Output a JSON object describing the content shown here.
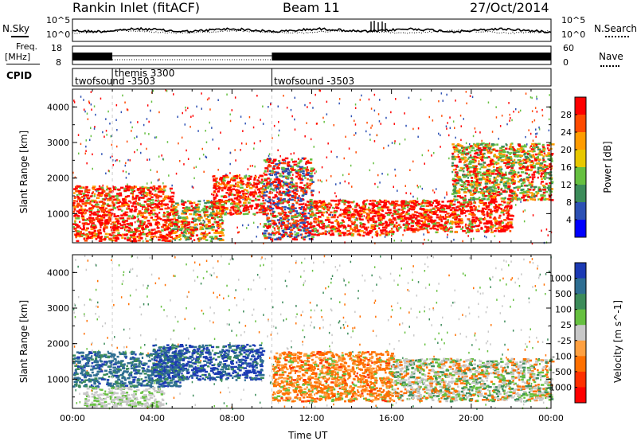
{
  "header": {
    "station": "Rankin Inlet (fitACF)",
    "beam": "Beam 11",
    "date": "27/Oct/2014"
  },
  "noise_panel": {
    "left_label": "N.Sky",
    "right_label": "N.Search",
    "left_ticks": [
      "10^5",
      "10^0"
    ],
    "right_ticks": [
      "10^5",
      "10^0"
    ]
  },
  "freq_panel": {
    "left_label_top": "Freq.",
    "left_label_unit": "[MHz]",
    "left_ticks": [
      "18",
      "8"
    ],
    "right_label": "Nave",
    "right_ticks": [
      "60",
      "0"
    ]
  },
  "cpid": {
    "label": "CPID",
    "segments": [
      {
        "name": "twofsound -3503",
        "start": "00:00"
      },
      {
        "name": "themis 3300",
        "start": "02:00"
      },
      {
        "name": "twofsound -3503",
        "start": "10:00"
      }
    ]
  },
  "chart_data": [
    {
      "type": "heatmap",
      "panel": "power",
      "xlabel": "",
      "ylabel": "Slant Range [km]",
      "x_range": [
        "00:00",
        "00:00"
      ],
      "ylim": [
        180,
        4500
      ],
      "y_ticks": [
        "1000",
        "2000",
        "3000",
        "4000"
      ],
      "colorbar": {
        "label": "Power [dB]",
        "ticks": [
          "28",
          "24",
          "20",
          "16",
          "12",
          "8",
          "4"
        ],
        "colors": [
          "#ff0000",
          "#ff4a00",
          "#ff9c00",
          "#e8c800",
          "#66c040",
          "#3c8c5a",
          "#2c50b4",
          "#0000ff"
        ]
      },
      "echo_regions": [
        {
          "start_h": 0.0,
          "end_h": 5.0,
          "range_km": [
            250,
            1800
          ],
          "level": "strong"
        },
        {
          "start_h": 5.0,
          "end_h": 7.5,
          "range_km": [
            250,
            1400
          ],
          "level": "moderate"
        },
        {
          "start_h": 7.0,
          "end_h": 9.5,
          "range_km": [
            1000,
            2100
          ],
          "level": "strong"
        },
        {
          "start_h": 9.5,
          "end_h": 12.0,
          "range_km": [
            300,
            2600
          ],
          "level": "mixed"
        },
        {
          "start_h": 12.0,
          "end_h": 16.0,
          "range_km": [
            400,
            1400
          ],
          "level": "strong"
        },
        {
          "start_h": 16.0,
          "end_h": 22.0,
          "range_km": [
            500,
            1400
          ],
          "level": "strong"
        },
        {
          "start_h": 19.0,
          "end_h": 24.0,
          "range_km": [
            1400,
            3000
          ],
          "level": "moderate"
        }
      ]
    },
    {
      "type": "heatmap",
      "panel": "velocity",
      "xlabel": "Time UT",
      "ylabel": "Slant Range [km]",
      "x_ticks": [
        "00:00",
        "04:00",
        "08:00",
        "12:00",
        "16:00",
        "20:00",
        "00:00"
      ],
      "ylim": [
        180,
        4500
      ],
      "y_ticks": [
        "1000",
        "2000",
        "3000",
        "4000"
      ],
      "colorbar": {
        "label": "Velocity [m s^-1]",
        "ticks": [
          "1000",
          "500",
          "100",
          "25",
          "-25",
          "-100",
          "-500",
          "-1000"
        ],
        "colors": [
          "#1c3ab4",
          "#2e6e92",
          "#3c8c5a",
          "#66c040",
          "#c8c8c8",
          "#ffa040",
          "#ff7000",
          "#ff3000",
          "#ff0000"
        ]
      },
      "echo_regions": [
        {
          "start_h": 0.0,
          "end_h": 5.5,
          "range_km": [
            800,
            1800
          ],
          "level": "toward_green"
        },
        {
          "start_h": 0.5,
          "end_h": 4.5,
          "range_km": [
            250,
            800
          ],
          "level": "grey"
        },
        {
          "start_h": 4.0,
          "end_h": 9.5,
          "range_km": [
            1000,
            2000
          ],
          "level": "toward_blue"
        },
        {
          "start_h": 10.0,
          "end_h": 16.0,
          "range_km": [
            400,
            1800
          ],
          "level": "away_orange"
        },
        {
          "start_h": 16.0,
          "end_h": 24.0,
          "range_km": [
            400,
            1600
          ],
          "level": "mixed_grey_orange"
        }
      ]
    }
  ]
}
